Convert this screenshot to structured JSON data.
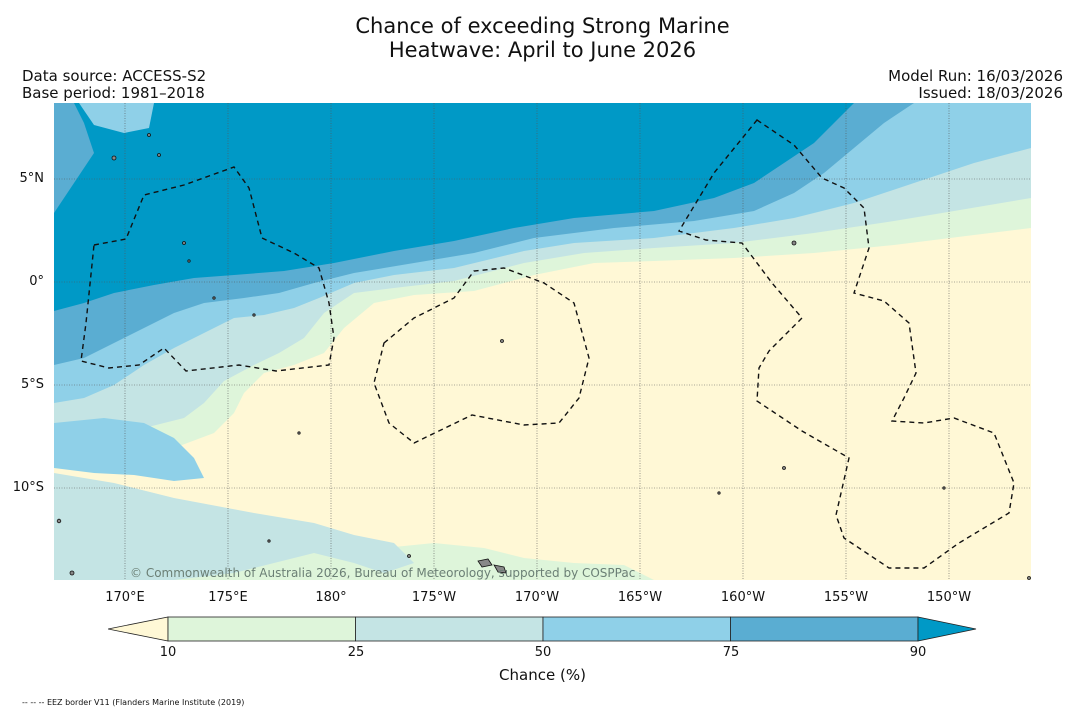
{
  "title_line1": "Chance of exceeding Strong Marine",
  "title_line2": "Heatwave: April to June 2026",
  "data_source": "Data source: ACCESS-S2",
  "base_period": "Base period: 1981–2018",
  "model_run": "Model Run: 16/03/2026",
  "issued": "Issued: 18/03/2026",
  "copyright": "© Commonwealth of Australia 2026, Bureau of Meteorology, supported by COSPPac",
  "lat_ticks": [
    "5°N",
    "0°",
    "5°S",
    "10°S"
  ],
  "lon_ticks": [
    "170°E",
    "175°E",
    "180°",
    "175°W",
    "170°W",
    "165°W",
    "160°W",
    "155°W",
    "150°W"
  ],
  "colorbar": {
    "ticks": [
      "10",
      "25",
      "50",
      "75",
      "90"
    ],
    "label": "Chance (%)",
    "colors": [
      "#fff8d6",
      "#def5da",
      "#c4e4e4",
      "#8fd0e8",
      "#5aadd2",
      "#0099c6"
    ]
  },
  "footnote": "-- -- -- EEZ border V11 (Flanders Marine Institute (2019)"
}
